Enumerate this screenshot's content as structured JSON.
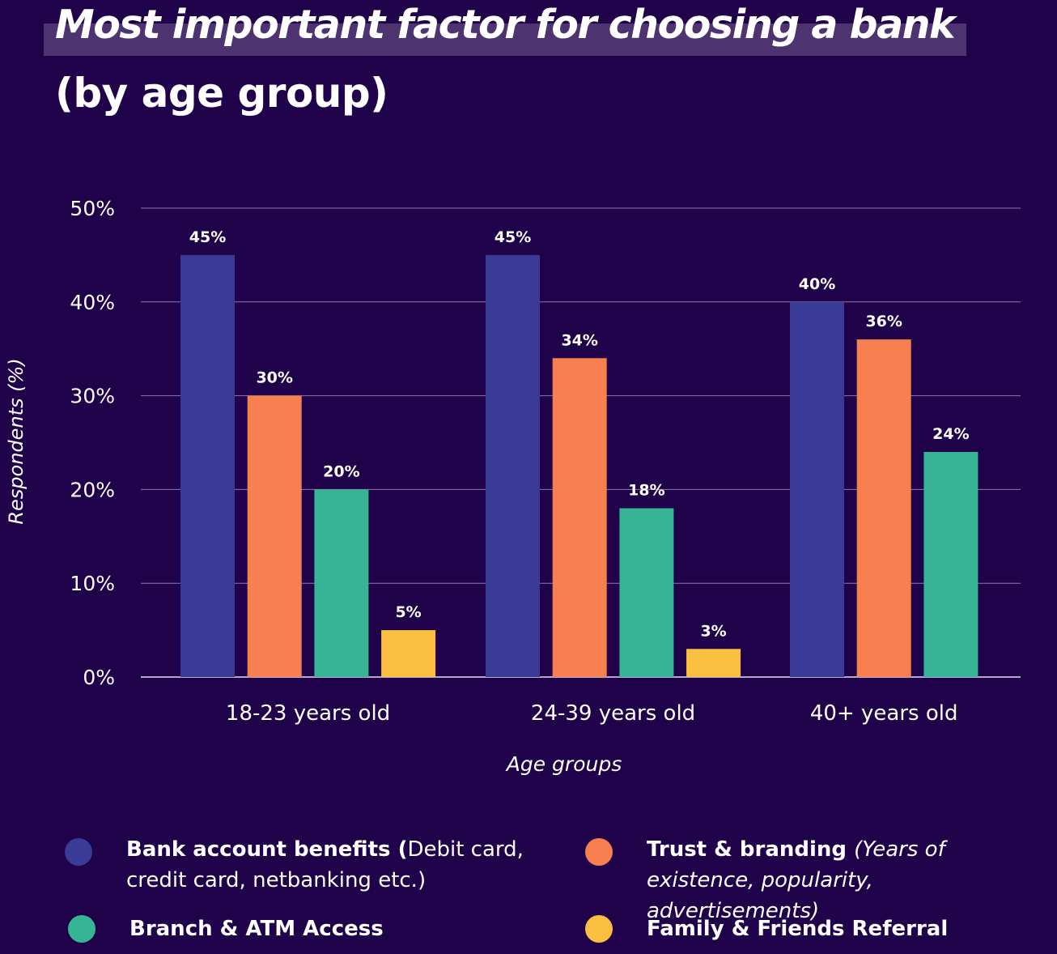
{
  "header": {
    "title": "Most important factor for choosing a bank",
    "subtitle": "(by age group)"
  },
  "chart_data": {
    "type": "bar",
    "title": "Most important factor for choosing a bank",
    "subtitle": "(by age group)",
    "xlabel": "Age groups",
    "ylabel": "Respondents (%)",
    "ylim": [
      0,
      50
    ],
    "yticks": [
      "0%",
      "10%",
      "20%",
      "30%",
      "40%",
      "50%"
    ],
    "grid": true,
    "legend_position": "bottom",
    "categories": [
      "18-23 years old",
      "24-39 years old",
      "40+ years old"
    ],
    "series": [
      {
        "name": "Bank account benefits",
        "color": "#3a3a97",
        "values": [
          45,
          45,
          40
        ],
        "labels": [
          "45%",
          "45%",
          "40%"
        ]
      },
      {
        "name": "Trust & branding",
        "color": "#f88050",
        "values": [
          30,
          34,
          36
        ],
        "labels": [
          "30%",
          "34%",
          "36%"
        ]
      },
      {
        "name": "Branch & ATM Access",
        "color": "#37b396",
        "values": [
          20,
          18,
          24
        ],
        "labels": [
          "20%",
          "18%",
          "24%"
        ]
      },
      {
        "name": "Family & Friends Referral",
        "color": "#f9bf41",
        "values": [
          5,
          3,
          null
        ],
        "labels": [
          "5%",
          "3%",
          null
        ]
      }
    ]
  },
  "legend": [
    {
      "name": "Bank account benefits",
      "bold": "Bank account benefits (",
      "rest": "Debit card, credit card, netbanking etc.)",
      "italic": false,
      "color": "#3a3a97"
    },
    {
      "name": "Trust & branding",
      "bold": "Trust & branding ",
      "rest": "(Years of existence, popularity, advertisements)",
      "italic": true,
      "color": "#f88050"
    },
    {
      "name": "Branch & ATM Access",
      "bold": "Branch & ATM Access",
      "rest": "",
      "italic": false,
      "color": "#37b396"
    },
    {
      "name": "Family & Friends Referral",
      "bold": "Family & Friends Referral",
      "rest": "",
      "italic": false,
      "color": "#f9bf41"
    }
  ]
}
